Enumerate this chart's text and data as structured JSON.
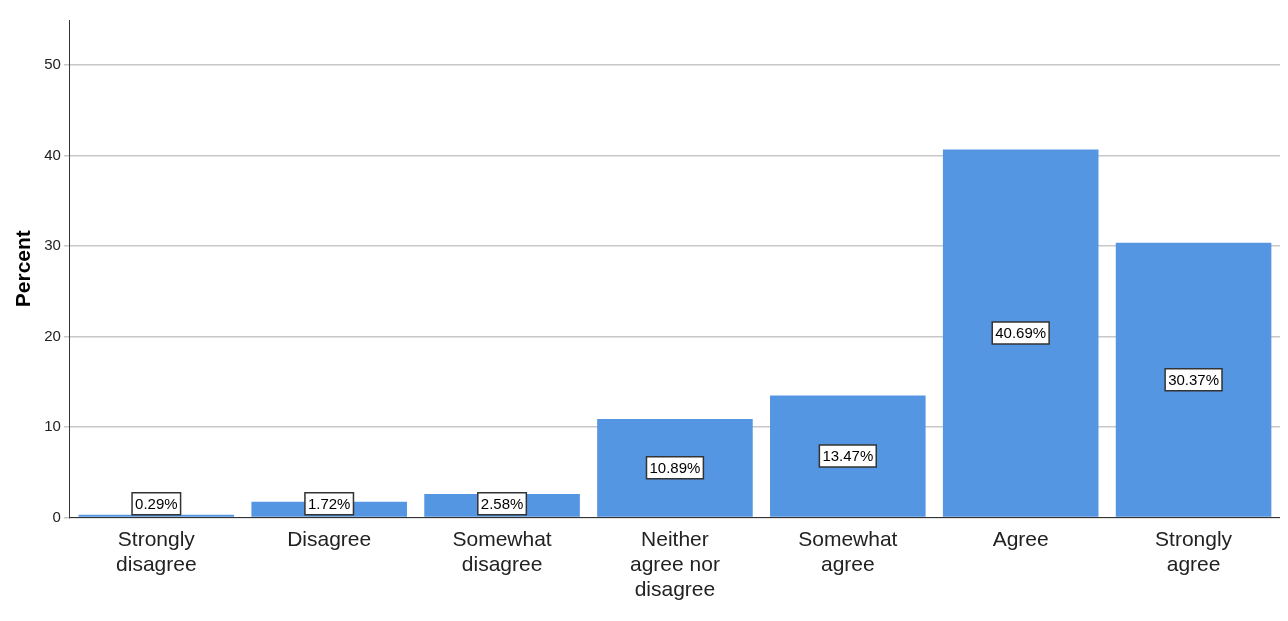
{
  "chart_data": {
    "type": "bar",
    "ylabel": "Percent",
    "categories": [
      "Strongly disagree",
      "Disagree",
      "Somewhat disagree",
      "Neither agree nor disagree",
      "Somewhat agree",
      "Agree",
      "Strongly agree"
    ],
    "values": [
      0.29,
      1.72,
      2.58,
      10.89,
      13.47,
      40.69,
      30.37
    ],
    "value_labels": [
      "0.29%",
      "1.72%",
      "2.58%",
      "10.89%",
      "13.47%",
      "40.69%",
      "30.37%"
    ],
    "color": "#5596e3",
    "ylim": [
      0,
      55
    ],
    "yticks": [
      0,
      10,
      20,
      30,
      40,
      50
    ],
    "grid": "y",
    "legend": false
  }
}
